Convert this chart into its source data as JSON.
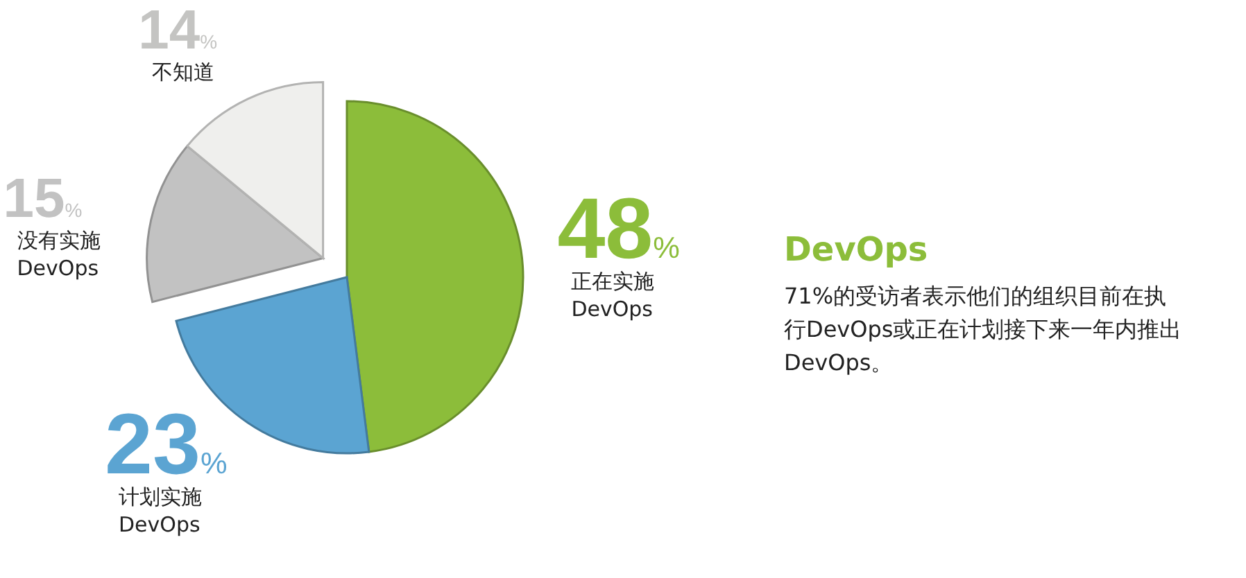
{
  "chart_data": {
    "type": "pie",
    "title": "DevOps",
    "categories": [
      "正在实施 DevOps",
      "计划实施 DevOps",
      "没有实施 DevOps",
      "不知道"
    ],
    "values": [
      48,
      23,
      15,
      14
    ],
    "colors": [
      "#8cbd3a",
      "#5ba4d2",
      "#c2c2c2",
      "#efefed"
    ],
    "value_labels": [
      "48%",
      "23%",
      "15%",
      "14%"
    ],
    "annotations": [
      "71%的受访者表示他们的组织目前在执行DevOps或正在计划接下来一年内推出DevOps。"
    ],
    "legend": false
  }
}
